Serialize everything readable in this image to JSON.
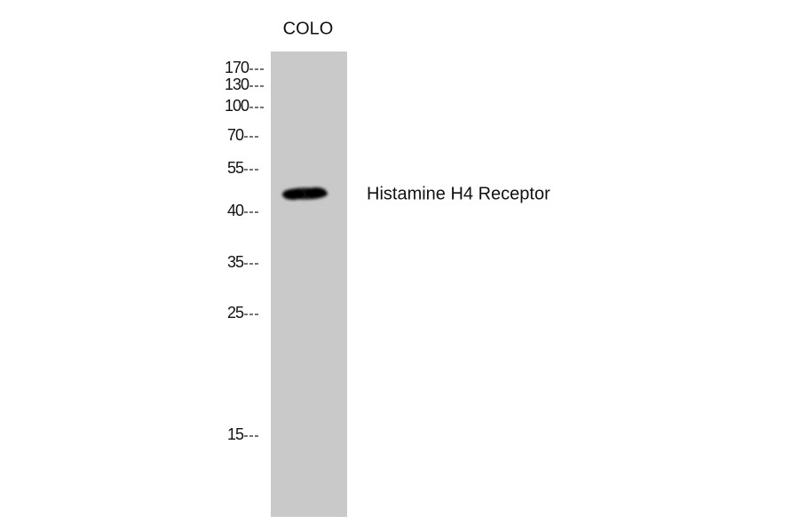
{
  "lane_labels": [
    "COLO"
  ],
  "markers": [
    "170",
    "130",
    "100",
    "70",
    "55",
    "40",
    "35",
    "25",
    "15"
  ],
  "band_label": "Histamine H4 Receptor"
}
